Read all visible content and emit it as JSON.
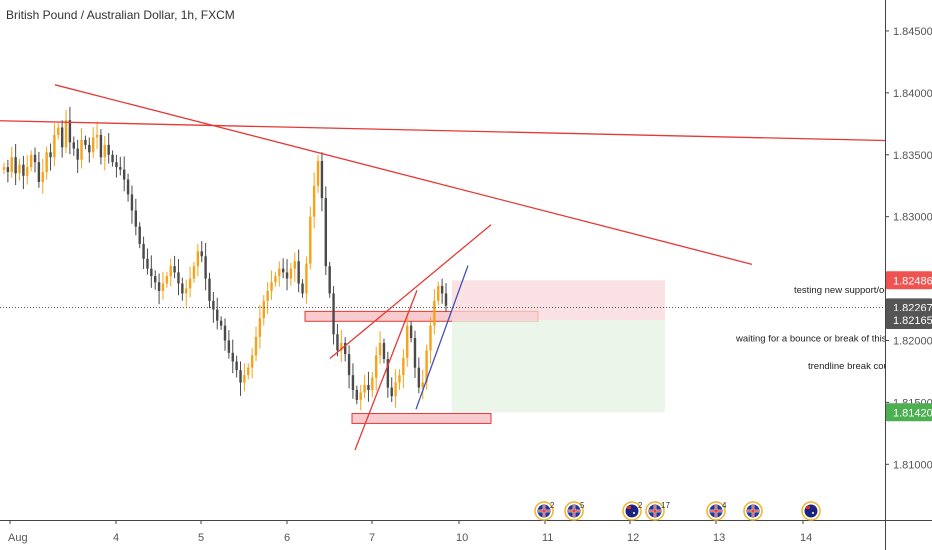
{
  "chart_data": {
    "type": "candlestick",
    "title": "British Pound / Australian Dollar, 1h, FXCM",
    "ylim": [
      1.8055,
      1.8475
    ],
    "y_ticks": [
      {
        "value": 1.845,
        "label": "1.84500"
      },
      {
        "value": 1.84,
        "label": "1.84000"
      },
      {
        "value": 1.835,
        "label": "1.83500"
      },
      {
        "value": 1.83,
        "label": "1.83000"
      },
      {
        "value": 1.82,
        "label": "1.82000"
      },
      {
        "value": 1.815,
        "label": "1.81500"
      },
      {
        "value": 1.81,
        "label": "1.81000"
      }
    ],
    "x_ticks": [
      "Aug",
      "4",
      "5",
      "6",
      "7",
      "10",
      "11",
      "12",
      "13",
      "14"
    ],
    "price_badges": [
      {
        "label": "1.82486",
        "value": 1.82486,
        "color": "#ef5350"
      },
      {
        "label": "1.82267",
        "value": 1.82267,
        "color": "#555555"
      },
      {
        "label": "1.82165",
        "value": 1.82165,
        "color": "#555555"
      },
      {
        "label": "1.81420",
        "value": 1.8142,
        "color": "#4caf50"
      }
    ],
    "current_price": 1.82267,
    "session_days": [
      "Aug 3",
      "Aug 4",
      "Aug 5",
      "Aug 6",
      "Aug 7"
    ],
    "closes": [
      1.834,
      1.8336,
      1.8348,
      1.8335,
      1.8342,
      1.8333,
      1.834,
      1.835,
      1.8344,
      1.8328,
      1.8336,
      1.8352,
      1.8348,
      1.8366,
      1.8372,
      1.8356,
      1.8378,
      1.836,
      1.8355,
      1.8346,
      1.8362,
      1.8358,
      1.8352,
      1.8364,
      1.8366,
      1.8348,
      1.8358,
      1.835,
      1.8344,
      1.834,
      1.8338,
      1.833,
      1.8318,
      1.8305,
      1.8292,
      1.8278,
      1.8266,
      1.8258,
      1.8252,
      1.8247,
      1.824,
      1.8246,
      1.8252,
      1.826,
      1.8255,
      1.8246,
      1.8238,
      1.8242,
      1.825,
      1.826,
      1.8272,
      1.8268,
      1.825,
      1.8232,
      1.8225,
      1.8216,
      1.8212,
      1.82,
      1.819,
      1.8183,
      1.8176,
      1.8166,
      1.8172,
      1.8178,
      1.8188,
      1.8203,
      1.8218,
      1.8232,
      1.824,
      1.8247,
      1.8252,
      1.8258,
      1.8255,
      1.825,
      1.8258,
      1.8264,
      1.8246,
      1.8238,
      1.8262,
      1.83,
      1.8325,
      1.8345,
      1.8315,
      1.826,
      1.8238,
      1.8205,
      1.8192,
      1.8198,
      1.8189,
      1.8172,
      1.816,
      1.8152,
      1.8158,
      1.8164,
      1.816,
      1.817,
      1.8188,
      1.8198,
      1.8185,
      1.8162,
      1.8155,
      1.8166,
      1.8172,
      1.8186,
      1.8212,
      1.8202,
      1.8178,
      1.8162,
      1.8166,
      1.8192,
      1.8212,
      1.8232,
      1.8244,
      1.8238,
      1.8228
    ],
    "trend_lines": [
      {
        "name": "upper-downtrend-line",
        "color": "#e53935",
        "x1": 55,
        "y1": 1.84065,
        "x2": 752,
        "y2": 1.82615
      },
      {
        "name": "long-horizontal-trendline",
        "color": "#e53935",
        "x1": 0,
        "y1": 1.83775,
        "x2": 885,
        "y2": 1.83615
      },
      {
        "name": "rising-wedge-upper-line",
        "color": "#e53935",
        "x1": 330,
        "y1": 1.81855,
        "x2": 491,
        "y2": 1.82935
      },
      {
        "name": "rising-wedge-lower-line",
        "color": "#e53935",
        "x1": 355,
        "y1": 1.81115,
        "x2": 417,
        "y2": 1.82405
      },
      {
        "name": "blue-trendline",
        "color": "#3f51b5",
        "x1": 416,
        "y1": 1.81445,
        "x2": 468,
        "y2": 1.82605
      }
    ],
    "zones": [
      {
        "name": "resistance-zone",
        "x1": 305,
        "x2": 538,
        "y_low": 1.82155,
        "y_high": 1.82235
      },
      {
        "name": "support-zone",
        "x1": 352,
        "x2": 491,
        "y_low": 1.8133,
        "y_high": 1.8141
      },
      {
        "name": "stop-loss-box",
        "x1": 452,
        "x2": 665,
        "y_low": 1.82165,
        "y_high": 1.82486
      },
      {
        "name": "take-profit-box",
        "x1": 452,
        "x2": 665,
        "y_low": 1.8142,
        "y_high": 1.82165
      }
    ],
    "annotations": [
      {
        "name": "annotation-testing-support",
        "text": "testing new support/old r",
        "price": 1.82406
      },
      {
        "name": "annotation-bounce",
        "text": "waiting for a bounce or break of this leve",
        "price": 1.82016
      },
      {
        "name": "annotation-trendline-break",
        "text": "trendline break could",
        "price": 1.81793
      }
    ],
    "events": [
      {
        "flag": "uk",
        "count": "2",
        "x": 544
      },
      {
        "flag": "uk",
        "count": "5",
        "x": 574
      },
      {
        "flag": "au",
        "count": "2",
        "x": 632
      },
      {
        "flag": "uk",
        "count": "17",
        "x": 655
      },
      {
        "flag": "uk",
        "count": "4",
        "x": 716
      },
      {
        "flag": "uk",
        "count": "",
        "x": 753
      },
      {
        "flag": "au",
        "count": "",
        "x": 811
      }
    ],
    "colors": {
      "up": "#f7a21b",
      "down": "#4a4a4a",
      "loss": "#f8d7da",
      "profit": "#e4f2e1",
      "zone": "#f5b5b9"
    }
  }
}
